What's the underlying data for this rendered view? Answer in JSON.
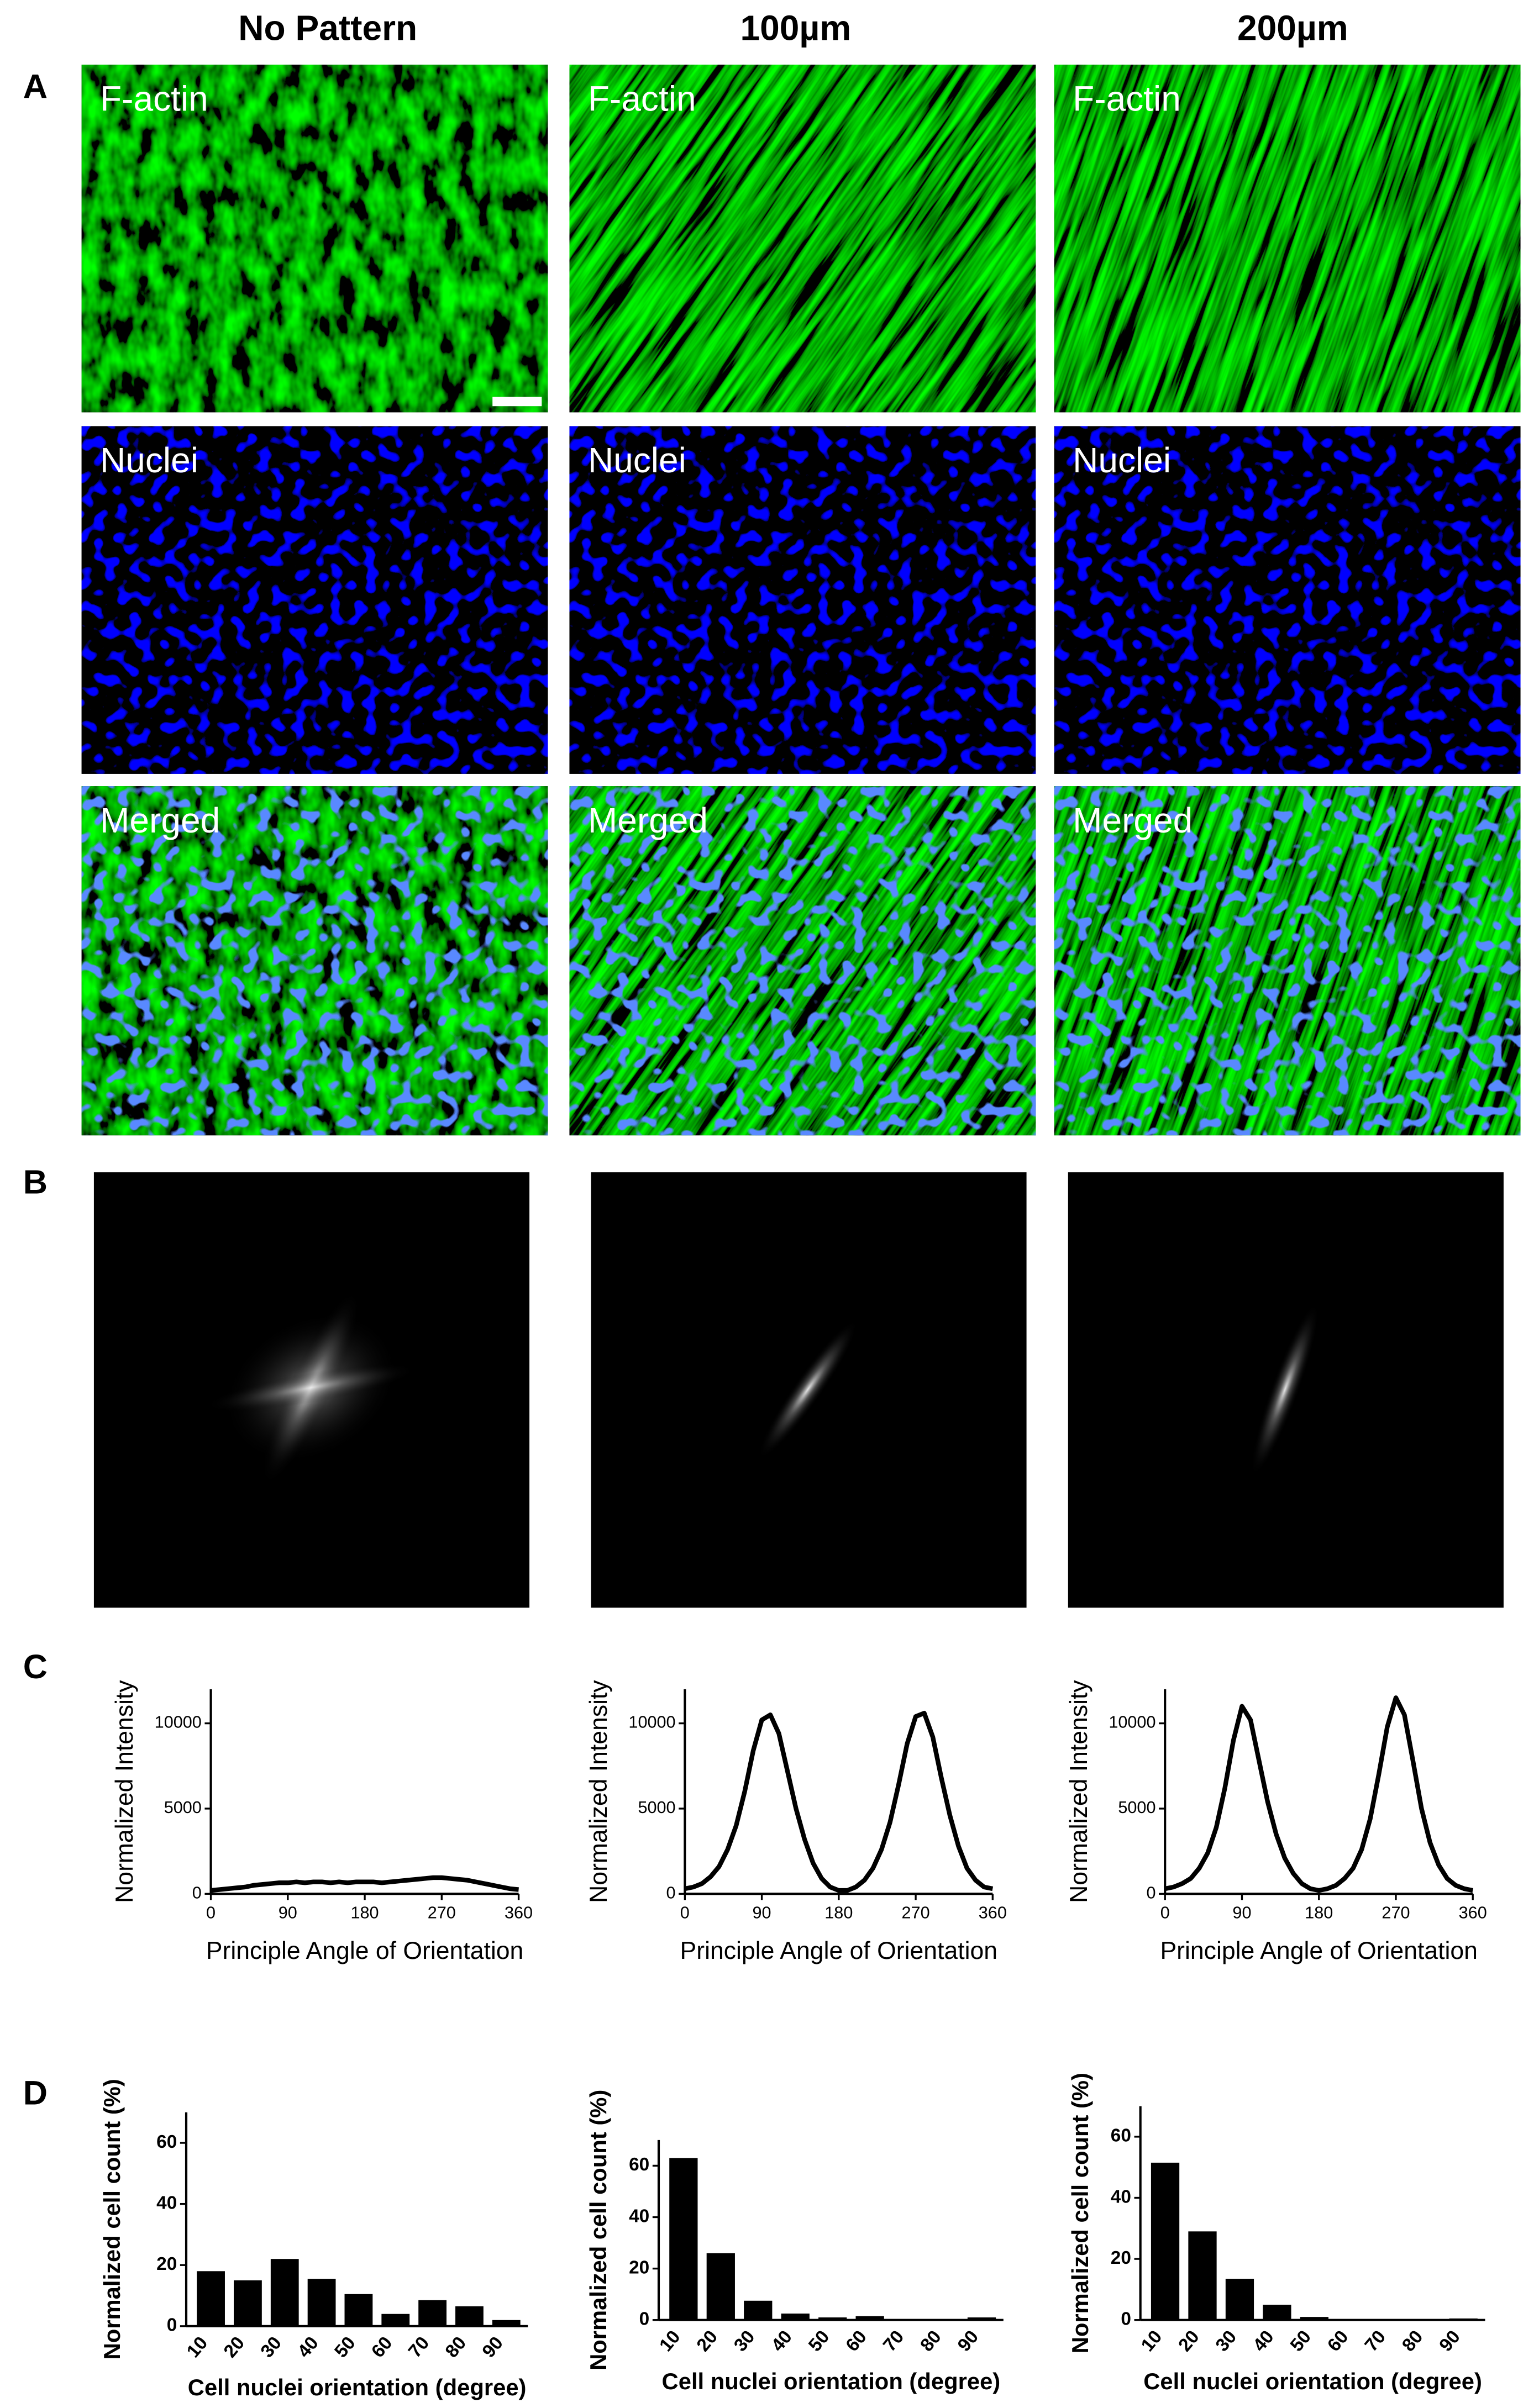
{
  "figure": {
    "columns": [
      "No Pattern",
      "100µm",
      "200µm"
    ],
    "panels": [
      "A",
      "B",
      "C",
      "D"
    ],
    "image_labels": [
      "F-actin",
      "Nuclei",
      "Merged"
    ]
  },
  "chart_data": [
    {
      "type": "line",
      "xlabel": "Principle Angle of Orientation",
      "ylabel": "Normalized Intensity",
      "color": "#000000",
      "x": [
        0,
        10,
        20,
        30,
        40,
        50,
        60,
        70,
        80,
        90,
        100,
        110,
        120,
        130,
        140,
        150,
        160,
        170,
        180,
        190,
        200,
        210,
        220,
        230,
        240,
        250,
        260,
        270,
        280,
        290,
        300,
        310,
        320,
        330,
        340,
        350,
        360
      ],
      "values": [
        200,
        250,
        300,
        350,
        400,
        500,
        550,
        600,
        650,
        650,
        700,
        650,
        700,
        700,
        650,
        700,
        650,
        700,
        700,
        700,
        650,
        700,
        750,
        800,
        850,
        900,
        950,
        950,
        900,
        850,
        800,
        700,
        600,
        500,
        400,
        300,
        250
      ],
      "xlim": [
        0,
        360
      ],
      "xticks": [
        0,
        90,
        180,
        270,
        360
      ],
      "ylim": [
        0,
        12000
      ],
      "yticks": [
        0,
        5000,
        10000
      ]
    },
    {
      "type": "line",
      "xlabel": "Principle Angle of Orientation",
      "ylabel": "Normalized Intensity",
      "color": "#000000",
      "x": [
        0,
        10,
        20,
        30,
        40,
        50,
        60,
        70,
        80,
        90,
        100,
        110,
        120,
        130,
        140,
        150,
        160,
        170,
        180,
        190,
        200,
        210,
        220,
        230,
        240,
        250,
        260,
        270,
        280,
        290,
        300,
        310,
        320,
        330,
        340,
        350,
        360
      ],
      "values": [
        300,
        400,
        600,
        1000,
        1600,
        2600,
        4000,
        6000,
        8400,
        10200,
        10500,
        9400,
        7200,
        5000,
        3200,
        1800,
        900,
        400,
        200,
        200,
        400,
        800,
        1500,
        2600,
        4200,
        6400,
        8800,
        10400,
        10600,
        9200,
        6800,
        4600,
        2800,
        1500,
        800,
        400,
        300
      ],
      "xlim": [
        0,
        360
      ],
      "xticks": [
        0,
        90,
        180,
        270,
        360
      ],
      "ylim": [
        0,
        12000
      ],
      "yticks": [
        0,
        5000,
        10000
      ]
    },
    {
      "type": "line",
      "xlabel": "Principle Angle of Orientation",
      "ylabel": "Normalized Intensity",
      "color": "#000000",
      "x": [
        0,
        10,
        20,
        30,
        40,
        50,
        60,
        70,
        80,
        90,
        100,
        110,
        120,
        130,
        140,
        150,
        160,
        170,
        180,
        190,
        200,
        210,
        220,
        230,
        240,
        250,
        260,
        270,
        280,
        290,
        300,
        310,
        320,
        330,
        340,
        350,
        360
      ],
      "values": [
        300,
        400,
        600,
        900,
        1500,
        2400,
        3900,
        6200,
        9000,
        11000,
        10200,
        7800,
        5400,
        3500,
        2100,
        1200,
        600,
        300,
        200,
        300,
        500,
        900,
        1500,
        2600,
        4400,
        7000,
        9800,
        11500,
        10500,
        7800,
        5000,
        3000,
        1700,
        900,
        500,
        300,
        200
      ],
      "xlim": [
        0,
        360
      ],
      "xticks": [
        0,
        90,
        180,
        270,
        360
      ],
      "ylim": [
        0,
        12000
      ],
      "yticks": [
        0,
        5000,
        10000
      ]
    },
    {
      "type": "bar",
      "xlabel": "Cell nuclei orientation (degree)",
      "ylabel": "Normalized cell count (%)",
      "color": "#000000",
      "categories": [
        "10",
        "20",
        "30",
        "40",
        "50",
        "60",
        "70",
        "80",
        "90"
      ],
      "values": [
        18,
        15,
        22,
        15.5,
        10.5,
        4,
        8.5,
        6.5,
        2
      ],
      "ylim": [
        0,
        70
      ],
      "yticks": [
        0,
        20,
        40,
        60
      ]
    },
    {
      "type": "bar",
      "xlabel": "Cell nuclei orientation (degree)",
      "ylabel": "Normalized cell count (%)",
      "color": "#000000",
      "categories": [
        "10",
        "20",
        "30",
        "40",
        "50",
        "60",
        "70",
        "80",
        "90"
      ],
      "values": [
        63,
        26,
        7.5,
        2.5,
        1,
        1.5,
        0,
        0,
        1
      ],
      "ylim": [
        0,
        70
      ],
      "yticks": [
        0,
        20,
        40,
        60
      ]
    },
    {
      "type": "bar",
      "xlabel": "Cell nuclei orientation (degree)",
      "ylabel": "Normalized cell count (%)",
      "color": "#000000",
      "categories": [
        "10",
        "20",
        "30",
        "40",
        "50",
        "60",
        "70",
        "80",
        "90"
      ],
      "values": [
        51.5,
        29,
        13.5,
        5,
        1,
        0,
        0,
        0,
        0.5
      ],
      "ylim": [
        0,
        70
      ],
      "yticks": [
        0,
        20,
        40,
        60
      ]
    }
  ]
}
